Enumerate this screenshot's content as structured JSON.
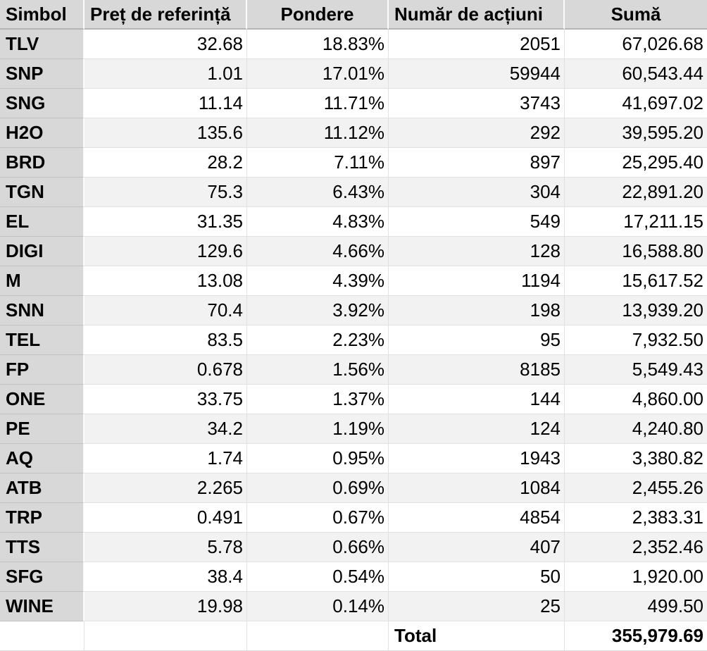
{
  "colors": {
    "header_bg": "#d8d8d8",
    "header_separator": "#fbfbfb",
    "header_bottom_border": "#b4b4b4",
    "row_bg": "#ffffff",
    "row_alt_bg": "#f2f2f2",
    "grid_line": "#e1e1e1",
    "symbol_col_divider": "#c2c2c2",
    "text": "#000000"
  },
  "table": {
    "columns": [
      {
        "key": "symbol",
        "label": "Simbol"
      },
      {
        "key": "price",
        "label": "Preț de referință"
      },
      {
        "key": "weight",
        "label": "Pondere"
      },
      {
        "key": "shares",
        "label": "Număr de acțiuni"
      },
      {
        "key": "amount",
        "label": "Sumă"
      }
    ],
    "rows": [
      [
        "TLV",
        "32.68",
        "18.83%",
        "2051",
        "67,026.68"
      ],
      [
        "SNP",
        "1.01",
        "17.01%",
        "59944",
        "60,543.44"
      ],
      [
        "SNG",
        "11.14",
        "11.71%",
        "3743",
        "41,697.02"
      ],
      [
        "H2O",
        "135.6",
        "11.12%",
        "292",
        "39,595.20"
      ],
      [
        "BRD",
        "28.2",
        "7.11%",
        "897",
        "25,295.40"
      ],
      [
        "TGN",
        "75.3",
        "6.43%",
        "304",
        "22,891.20"
      ],
      [
        "EL",
        "31.35",
        "4.83%",
        "549",
        "17,211.15"
      ],
      [
        "DIGI",
        "129.6",
        "4.66%",
        "128",
        "16,588.80"
      ],
      [
        "M",
        "13.08",
        "4.39%",
        "1194",
        "15,617.52"
      ],
      [
        "SNN",
        "70.4",
        "3.92%",
        "198",
        "13,939.20"
      ],
      [
        "TEL",
        "83.5",
        "2.23%",
        "95",
        "7,932.50"
      ],
      [
        "FP",
        "0.678",
        "1.56%",
        "8185",
        "5,549.43"
      ],
      [
        "ONE",
        "33.75",
        "1.37%",
        "144",
        "4,860.00"
      ],
      [
        "PE",
        "34.2",
        "1.19%",
        "124",
        "4,240.80"
      ],
      [
        "AQ",
        "1.74",
        "0.95%",
        "1943",
        "3,380.82"
      ],
      [
        "ATB",
        "2.265",
        "0.69%",
        "1084",
        "2,455.26"
      ],
      [
        "TRP",
        "0.491",
        "0.67%",
        "4854",
        "2,383.31"
      ],
      [
        "TTS",
        "5.78",
        "0.66%",
        "407",
        "2,352.46"
      ],
      [
        "SFG",
        "38.4",
        "0.54%",
        "50",
        "1,920.00"
      ],
      [
        "WINE",
        "19.98",
        "0.14%",
        "25",
        "499.50"
      ]
    ],
    "total": {
      "label": "Total",
      "value": "355,979.69"
    }
  }
}
